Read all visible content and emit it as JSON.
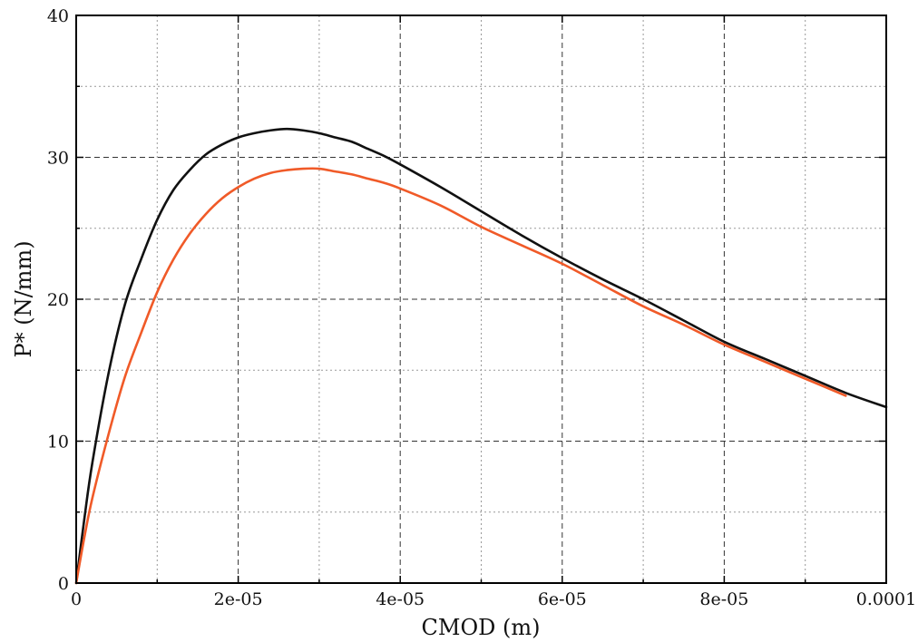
{
  "chart_data": {
    "type": "line",
    "title": "",
    "xlabel": "CMOD (m)",
    "ylabel": "P* (N/mm)",
    "xlim": [
      0,
      0.0001
    ],
    "ylim": [
      0,
      40
    ],
    "grid": true,
    "x_ticks": [
      0,
      2e-05,
      4e-05,
      6e-05,
      8e-05,
      0.0001
    ],
    "x_tick_labels": [
      "0",
      "2e-05",
      "4e-05",
      "6e-05",
      "8e-05",
      "0.0001"
    ],
    "x_minor_ticks": [
      1e-05,
      3e-05,
      5e-05,
      7e-05,
      9e-05
    ],
    "y_ticks": [
      0,
      10,
      20,
      30,
      40
    ],
    "y_tick_labels": [
      "0",
      "10",
      "20",
      "30",
      "40"
    ],
    "y_minor_ticks": [
      5,
      15,
      25,
      35
    ],
    "series": [
      {
        "color": "#111111",
        "x": [
          0,
          1e-06,
          2e-06,
          4e-06,
          6e-06,
          8e-06,
          1e-05,
          1.2e-05,
          1.4e-05,
          1.6e-05,
          1.8e-05,
          2e-05,
          2.2e-05,
          2.4e-05,
          2.6e-05,
          2.8e-05,
          3e-05,
          3.2e-05,
          3.4e-05,
          3.6e-05,
          3.8e-05,
          4e-05,
          4.5e-05,
          5e-05,
          5.5e-05,
          6e-05,
          6.5e-05,
          7e-05,
          7.5e-05,
          8e-05,
          8.5e-05,
          9e-05,
          9.5e-05,
          0.0001
        ],
        "y": [
          0,
          4.5,
          8.5,
          14.8,
          19.6,
          22.8,
          25.6,
          27.7,
          29.1,
          30.2,
          30.9,
          31.4,
          31.7,
          31.9,
          32.0,
          31.9,
          31.7,
          31.4,
          31.1,
          30.6,
          30.1,
          29.5,
          27.9,
          26.2,
          24.5,
          22.9,
          21.4,
          20.0,
          18.5,
          17.0,
          15.8,
          14.6,
          13.4,
          12.4
        ]
      },
      {
        "color": "#f05a28",
        "x": [
          0,
          1e-06,
          2e-06,
          4e-06,
          6e-06,
          8e-06,
          1e-05,
          1.2e-05,
          1.4e-05,
          1.6e-05,
          1.8e-05,
          2e-05,
          2.2e-05,
          2.4e-05,
          2.6e-05,
          2.8e-05,
          3e-05,
          3.2e-05,
          3.4e-05,
          3.6e-05,
          3.8e-05,
          4e-05,
          4.5e-05,
          5e-05,
          5.5e-05,
          6e-05,
          6.5e-05,
          7e-05,
          7.5e-05,
          8e-05,
          8.5e-05,
          9e-05,
          9.5e-05
        ],
        "y": [
          0,
          3.2,
          6.0,
          10.5,
          14.5,
          17.6,
          20.5,
          22.8,
          24.6,
          26.0,
          27.1,
          27.9,
          28.5,
          28.9,
          29.1,
          29.2,
          29.2,
          29.0,
          28.8,
          28.5,
          28.2,
          27.8,
          26.6,
          25.1,
          23.8,
          22.5,
          21.0,
          19.5,
          18.2,
          16.8,
          15.6,
          14.4,
          13.2
        ]
      }
    ]
  }
}
